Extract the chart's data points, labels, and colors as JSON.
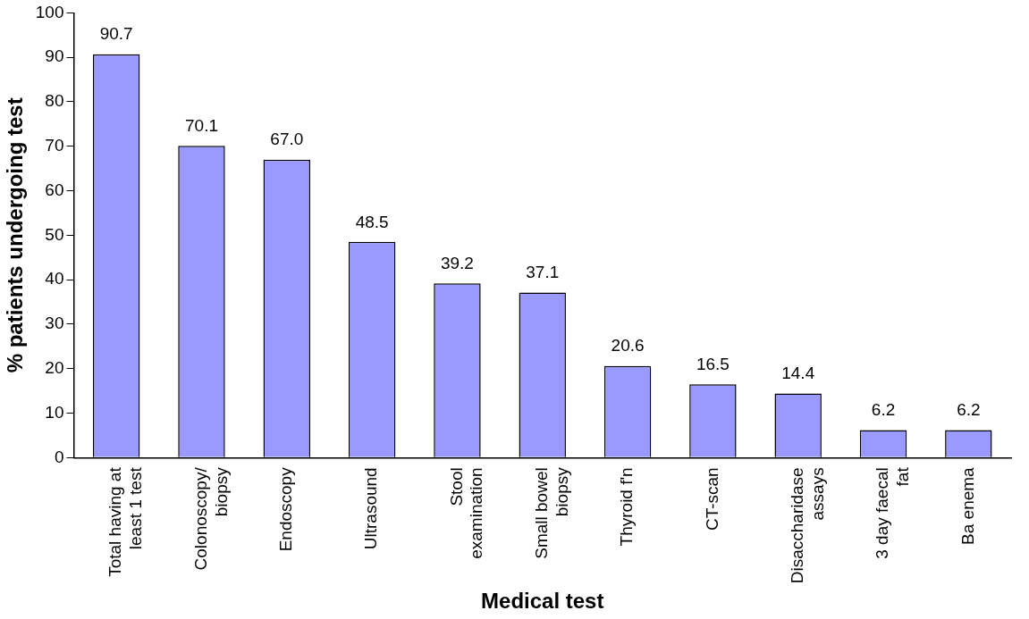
{
  "chart_data": {
    "type": "bar",
    "xlabel": "Medical test",
    "ylabel": "% patients undergoing test",
    "categories": [
      "Total having at\nleast 1 test",
      "Colonoscopy/\nbiopsy",
      "Endoscopy",
      "Ultrasound",
      "Stool\nexamination",
      "Small bowel\nbiopsy",
      "Thyroid f'n",
      "CT-scan",
      "Disaccharidase\nassays",
      "3 day faecal\nfat",
      "Ba enema"
    ],
    "values": [
      90.7,
      70.1,
      67.0,
      48.5,
      39.2,
      37.1,
      20.6,
      16.5,
      14.4,
      6.2,
      6.2
    ],
    "value_labels": [
      "90.7",
      "70.1",
      "67.0",
      "48.5",
      "39.2",
      "37.1",
      "20.6",
      "16.5",
      "14.4",
      "6.2",
      "6.2"
    ],
    "color": "#9999ff",
    "ylim": [
      0,
      100
    ],
    "yticks": [
      0,
      10,
      20,
      30,
      40,
      50,
      60,
      70,
      80,
      90,
      100
    ],
    "grid": false,
    "legend": false
  }
}
